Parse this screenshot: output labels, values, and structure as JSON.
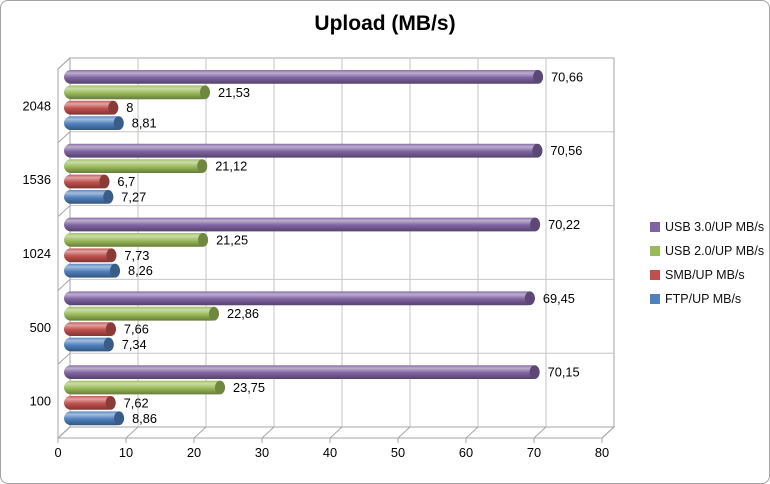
{
  "chart_data": {
    "type": "bar",
    "orientation": "horizontal",
    "style": "3d-cylinder",
    "title": "Upload (MB/s)",
    "categories": [
      "2048",
      "1536",
      "1024",
      "500",
      "100"
    ],
    "series": [
      {
        "name": "USB 3.0/UP MB/s",
        "color": "#8064A2",
        "values": [
          70.66,
          70.56,
          70.22,
          69.45,
          70.15
        ],
        "value_labels": [
          "70,66",
          "70,56",
          "70,22",
          "69,45",
          "70,15"
        ]
      },
      {
        "name": "USB 2.0/UP MB/s",
        "color": "#9BBB59",
        "values": [
          21.53,
          21.12,
          21.25,
          22.86,
          23.75
        ],
        "value_labels": [
          "21,53",
          "21,12",
          "21,25",
          "22,86",
          "23,75"
        ]
      },
      {
        "name": "SMB/UP MB/s",
        "color": "#C0504D",
        "values": [
          8,
          6.7,
          7.73,
          7.66,
          7.62
        ],
        "value_labels": [
          "8",
          "6,7",
          "7,73",
          "7,66",
          "7,62"
        ]
      },
      {
        "name": "FTP/UP MB/s",
        "color": "#4F81BD",
        "values": [
          8.81,
          7.27,
          8.26,
          7.34,
          8.86
        ],
        "value_labels": [
          "8,81",
          "7,27",
          "8,26",
          "7,34",
          "8,86"
        ]
      }
    ],
    "x_ticks": [
      "0",
      "10",
      "20",
      "30",
      "40",
      "50",
      "60",
      "70",
      "80"
    ],
    "xlim": [
      0,
      80
    ],
    "grid": true,
    "legend_position": "right"
  }
}
